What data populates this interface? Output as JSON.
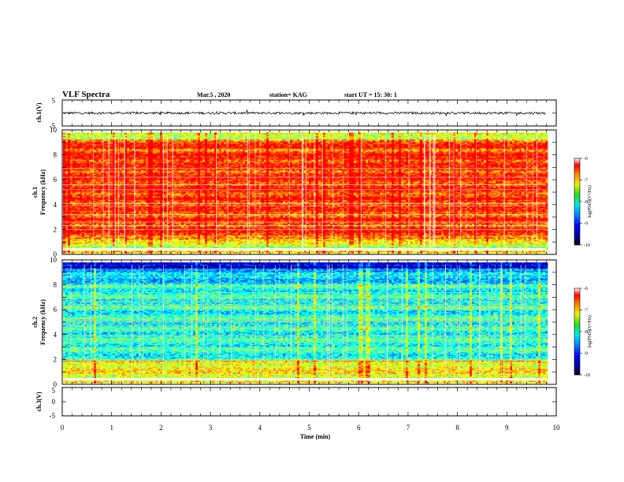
{
  "header": {
    "title": "VLF Spectra",
    "date": "Mar.5 , 2020",
    "station": "station= KAG",
    "start": "start UT = 15: 30: 1"
  },
  "chart_data": [
    {
      "type": "line",
      "panel": "ch1-waveform",
      "ylabel": "ch.1(V)",
      "ylim": [
        -5,
        5
      ],
      "y_ticks": [
        "5",
        "-5"
      ],
      "xlim": [
        0,
        10
      ],
      "baseline_value": 0
    },
    {
      "type": "heatmap",
      "panel": "ch1-spectrogram",
      "ylabel_channel": "ch.1",
      "ylabel": "Frequency (kHz)",
      "ylim": [
        0,
        10
      ],
      "y_ticks": [
        "0",
        "2",
        "4",
        "6",
        "8",
        "10"
      ],
      "xlim": [
        0,
        10
      ],
      "data_extent_min": 9.8,
      "colorbar": {
        "label": "log(PSD)(V²/Hz)",
        "range": [
          -10,
          -6
        ],
        "ticks": [
          "-6",
          "-7",
          "-8",
          "-9",
          "-10"
        ]
      }
    },
    {
      "type": "heatmap",
      "panel": "ch2-spectrogram",
      "ylabel_channel": "ch.2",
      "ylabel": "Frequency (kHz)",
      "ylim": [
        0,
        10
      ],
      "y_ticks": [
        "0",
        "2",
        "4",
        "6",
        "8",
        "10"
      ],
      "xlim": [
        0,
        10
      ],
      "data_extent_min": 9.8,
      "colorbar": {
        "label": "log(PSD)(V²/Hz)",
        "range": [
          -10,
          -6
        ],
        "ticks": [
          "-6",
          "-7",
          "-8",
          "-9",
          "-10"
        ]
      }
    },
    {
      "type": "line",
      "panel": "ch3-waveform",
      "ylabel": "ch.3(V)",
      "ylim": [
        -5,
        5
      ],
      "y_ticks": [
        "5",
        "0",
        "-5"
      ],
      "xlim": [
        0,
        10
      ]
    }
  ],
  "x_axis": {
    "label": "Time (min)",
    "ticks": [
      "0",
      "1",
      "2",
      "3",
      "4",
      "5",
      "6",
      "7",
      "8",
      "9",
      "10"
    ]
  }
}
